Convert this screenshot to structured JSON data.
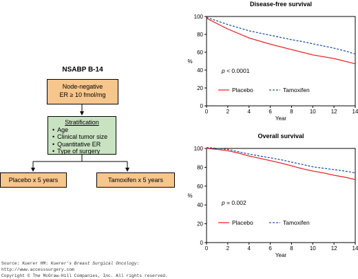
{
  "flowchart": {
    "title": "NSABP B-14",
    "eligibility_lines": [
      "Node-negative",
      "ER ≥ 10 fmol/mg"
    ],
    "stratification_header": "Stratification",
    "stratification_items": [
      "Age",
      "Clinical tumor size",
      "Quantitative ER",
      "Type of surgery"
    ],
    "arm_placebo": "Placebo x 5 years",
    "arm_tamoxifen": "Tamoxifen x 5 years",
    "box_color": "#f6c68c",
    "strat_color": "#c9e3c2"
  },
  "source": {
    "prefix": "Source: Kuerer HM: ",
    "title_italic": "Kuerer's Breast Surgical Oncology",
    "suffix": ": ",
    "url": "http://www.accesssurgery.com",
    "copyright": "Copyright © The McGraw-Hill Companies, Inc. All rights reserved."
  },
  "chart_data": [
    {
      "type": "line",
      "title": "Disease-free survival",
      "xlabel": "Year",
      "ylabel": "%",
      "xlim": [
        0,
        14
      ],
      "ylim": [
        0,
        100
      ],
      "xticks": [
        0,
        2,
        4,
        6,
        8,
        10,
        12,
        14
      ],
      "yticks": [
        0,
        20,
        40,
        60,
        80,
        100
      ],
      "annotation": {
        "italic": "p",
        "rest": " < 0.0001"
      },
      "legend_position": "bottom",
      "series": [
        {
          "name": "Placebo",
          "color": "#e8262b",
          "dash": false,
          "x": [
            0,
            1,
            2,
            3,
            4,
            5,
            6,
            7,
            8,
            9,
            10,
            11,
            12,
            13,
            14
          ],
          "y": [
            98,
            92,
            86,
            81,
            76,
            72.5,
            69,
            66,
            63,
            60,
            57,
            55,
            53,
            50,
            47
          ]
        },
        {
          "name": "Tamoxifen",
          "color": "#1f4fa3",
          "dash": true,
          "x": [
            0,
            1,
            2,
            3,
            4,
            5,
            6,
            7,
            8,
            9,
            10,
            11,
            12,
            13,
            14
          ],
          "y": [
            99,
            95,
            91,
            87.5,
            84,
            81.5,
            79,
            76.5,
            74,
            72,
            69.5,
            67,
            64.5,
            61.5,
            58
          ]
        }
      ]
    },
    {
      "type": "line",
      "title": "Overall survival",
      "xlabel": "Year",
      "ylabel": "%",
      "xlim": [
        0,
        14
      ],
      "ylim": [
        0,
        100
      ],
      "xticks": [
        0,
        2,
        4,
        6,
        8,
        10,
        12,
        14
      ],
      "yticks": [
        0,
        20,
        40,
        60,
        80,
        100
      ],
      "annotation": {
        "italic": "p",
        "rest": " = 0.002"
      },
      "legend_position": "bottom",
      "series": [
        {
          "name": "Placebo",
          "color": "#e8262b",
          "dash": false,
          "x": [
            0,
            1,
            2,
            3,
            4,
            5,
            6,
            7,
            8,
            9,
            10,
            11,
            12,
            13,
            14
          ],
          "y": [
            100,
            99,
            97.5,
            95,
            92,
            89.5,
            87,
            84.5,
            81.5,
            78.5,
            76,
            74,
            71.5,
            69.5,
            67
          ]
        },
        {
          "name": "Tamoxifen",
          "color": "#1f4fa3",
          "dash": true,
          "x": [
            0,
            1,
            2,
            3,
            4,
            5,
            6,
            7,
            8,
            9,
            10,
            11,
            12,
            13,
            14
          ],
          "y": [
            101,
            100,
            99,
            96.5,
            94,
            92,
            90,
            88,
            85.5,
            83,
            80.5,
            79,
            77.5,
            76,
            74
          ]
        }
      ]
    }
  ]
}
